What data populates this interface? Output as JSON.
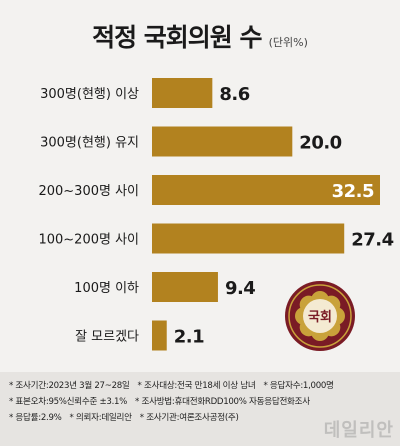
{
  "header": {
    "title": "적정 국회의원 수",
    "unit": "(단위%)"
  },
  "colors": {
    "bar": "#b2821f",
    "value_highlight_text": "#ffffff",
    "value_text": "#1a1a1a",
    "seal_dark": "#7a1b25",
    "seal_gold": "#c9a23a"
  },
  "emblem": {
    "label": "국회",
    "icon": "national-assembly-seal-icon"
  },
  "chart_data": {
    "type": "bar",
    "orientation": "horizontal",
    "categories": [
      "300명(현행) 이상",
      "300명(현행) 유지",
      "200~300명 사이",
      "100~200명 사이",
      "100명 이하",
      "잘 모르겠다"
    ],
    "values": [
      8.6,
      20.0,
      32.5,
      27.4,
      9.4,
      2.1
    ],
    "value_labels": [
      "8.6",
      "20.0",
      "32.5",
      "27.4",
      "9.4",
      "2.1"
    ],
    "highlight_index": 2,
    "title": "적정 국회의원 수",
    "unit": "(단위%)",
    "xlim": [
      0,
      32.5
    ],
    "grid": false,
    "legend": "none"
  },
  "footer": {
    "rows": [
      [
        "* 조사기간:2023년 3월 27~28일",
        "* 조사대상:전국 만18세 이상 남녀",
        "* 응답자수:1,000명"
      ],
      [
        "* 표본오차:95%신뢰수준 ±3.1%",
        "* 조사방법:휴대전화RDD100% 자동응답전화조사"
      ],
      [
        "* 응답률:2.9%",
        "* 의뢰자:데일리안",
        "* 조사기관:여론조사공정(주)"
      ]
    ],
    "watermark": "데일리안"
  }
}
